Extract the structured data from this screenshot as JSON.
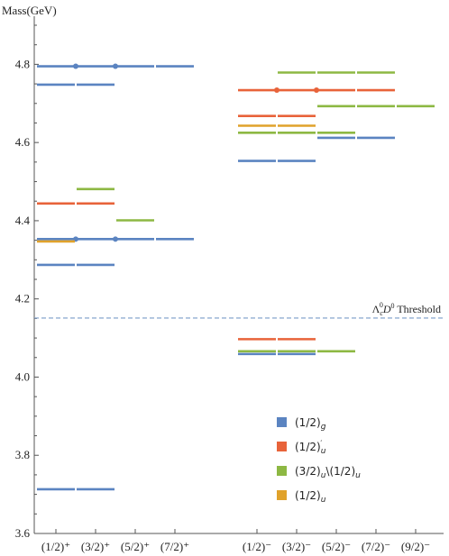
{
  "chart_data": {
    "type": "level-diagram",
    "ylabel": "Mass(GeV)",
    "ylim": [
      3.6,
      4.9
    ],
    "yticks": [
      3.6,
      3.8,
      4.0,
      4.2,
      4.4,
      4.6,
      4.8
    ],
    "ytick_labels": [
      "3.6",
      "3.8",
      "4.0",
      "4.2",
      "4.4",
      "4.6",
      "4.8"
    ],
    "categories": [
      {
        "label": "(1/2)⁺",
        "group": "positive"
      },
      {
        "label": "(3/2)⁺",
        "group": "positive"
      },
      {
        "label": "(5/2)⁺",
        "group": "positive"
      },
      {
        "label": "(7/2)⁺",
        "group": "positive"
      },
      {
        "label": "(1/2)⁻",
        "group": "negative"
      },
      {
        "label": "(3/2)⁻",
        "group": "negative"
      },
      {
        "label": "(5/2)⁻",
        "group": "negative"
      },
      {
        "label": "(7/2)⁻",
        "group": "negative"
      },
      {
        "label": "(9/2)⁻",
        "group": "negative"
      }
    ],
    "threshold": {
      "value": 4.151,
      "label_main": "Λ",
      "label_sub_c": "c",
      "label_sup_0a": "0",
      "label_mid": "D",
      "label_sup_0b": "0",
      "label_tail": " Threshold"
    },
    "series": [
      {
        "name": "(1/2)g",
        "color": "#5b84c1"
      },
      {
        "name": "(1/2)'u",
        "color": "#e8633a"
      },
      {
        "name": "(3/2)u\\(1/2)u",
        "color": "#8db843"
      },
      {
        "name": "(1/2)u",
        "color": "#e0a22b"
      }
    ],
    "levels": [
      {
        "series": 0,
        "from": 0,
        "to": 3,
        "y": 4.795,
        "dots": [
          1,
          2
        ]
      },
      {
        "series": 0,
        "from": 0,
        "to": 1,
        "y": 4.748,
        "dots": []
      },
      {
        "series": 0,
        "from": 0,
        "to": 3,
        "y": 4.353,
        "dots": [
          1,
          2
        ]
      },
      {
        "series": 0,
        "from": 0,
        "to": 1,
        "y": 4.287,
        "dots": []
      },
      {
        "series": 0,
        "from": 0,
        "to": 1,
        "y": 3.713,
        "dots": []
      },
      {
        "series": 1,
        "from": 0,
        "to": 1,
        "y": 4.444,
        "dots": []
      },
      {
        "series": 2,
        "from": 1,
        "to": 1,
        "y": 4.481,
        "dots": []
      },
      {
        "series": 2,
        "from": 2,
        "to": 2,
        "y": 4.401,
        "dots": []
      },
      {
        "series": 3,
        "from": 0,
        "to": 0,
        "y": 4.347,
        "dots": []
      },
      {
        "series": 2,
        "from": 5,
        "to": 7,
        "y": 4.779,
        "dots": []
      },
      {
        "series": 1,
        "from": 4,
        "to": 7,
        "y": 4.734,
        "dots": [
          5,
          6
        ]
      },
      {
        "series": 2,
        "from": 6,
        "to": 8,
        "y": 4.693,
        "dots": []
      },
      {
        "series": 1,
        "from": 4,
        "to": 5,
        "y": 4.668,
        "dots": []
      },
      {
        "series": 3,
        "from": 4,
        "to": 5,
        "y": 4.643,
        "dots": []
      },
      {
        "series": 2,
        "from": 4,
        "to": 6,
        "y": 4.625,
        "dots": []
      },
      {
        "series": 0,
        "from": 6,
        "to": 7,
        "y": 4.612,
        "dots": []
      },
      {
        "series": 0,
        "from": 4,
        "to": 5,
        "y": 4.553,
        "dots": []
      },
      {
        "series": 1,
        "from": 4,
        "to": 5,
        "y": 4.097,
        "dots": []
      },
      {
        "series": 2,
        "from": 4,
        "to": 6,
        "y": 4.066,
        "dots": []
      },
      {
        "series": 0,
        "from": 4,
        "to": 5,
        "y": 4.059,
        "dots": []
      }
    ],
    "legend_placement": "bottom-right"
  }
}
